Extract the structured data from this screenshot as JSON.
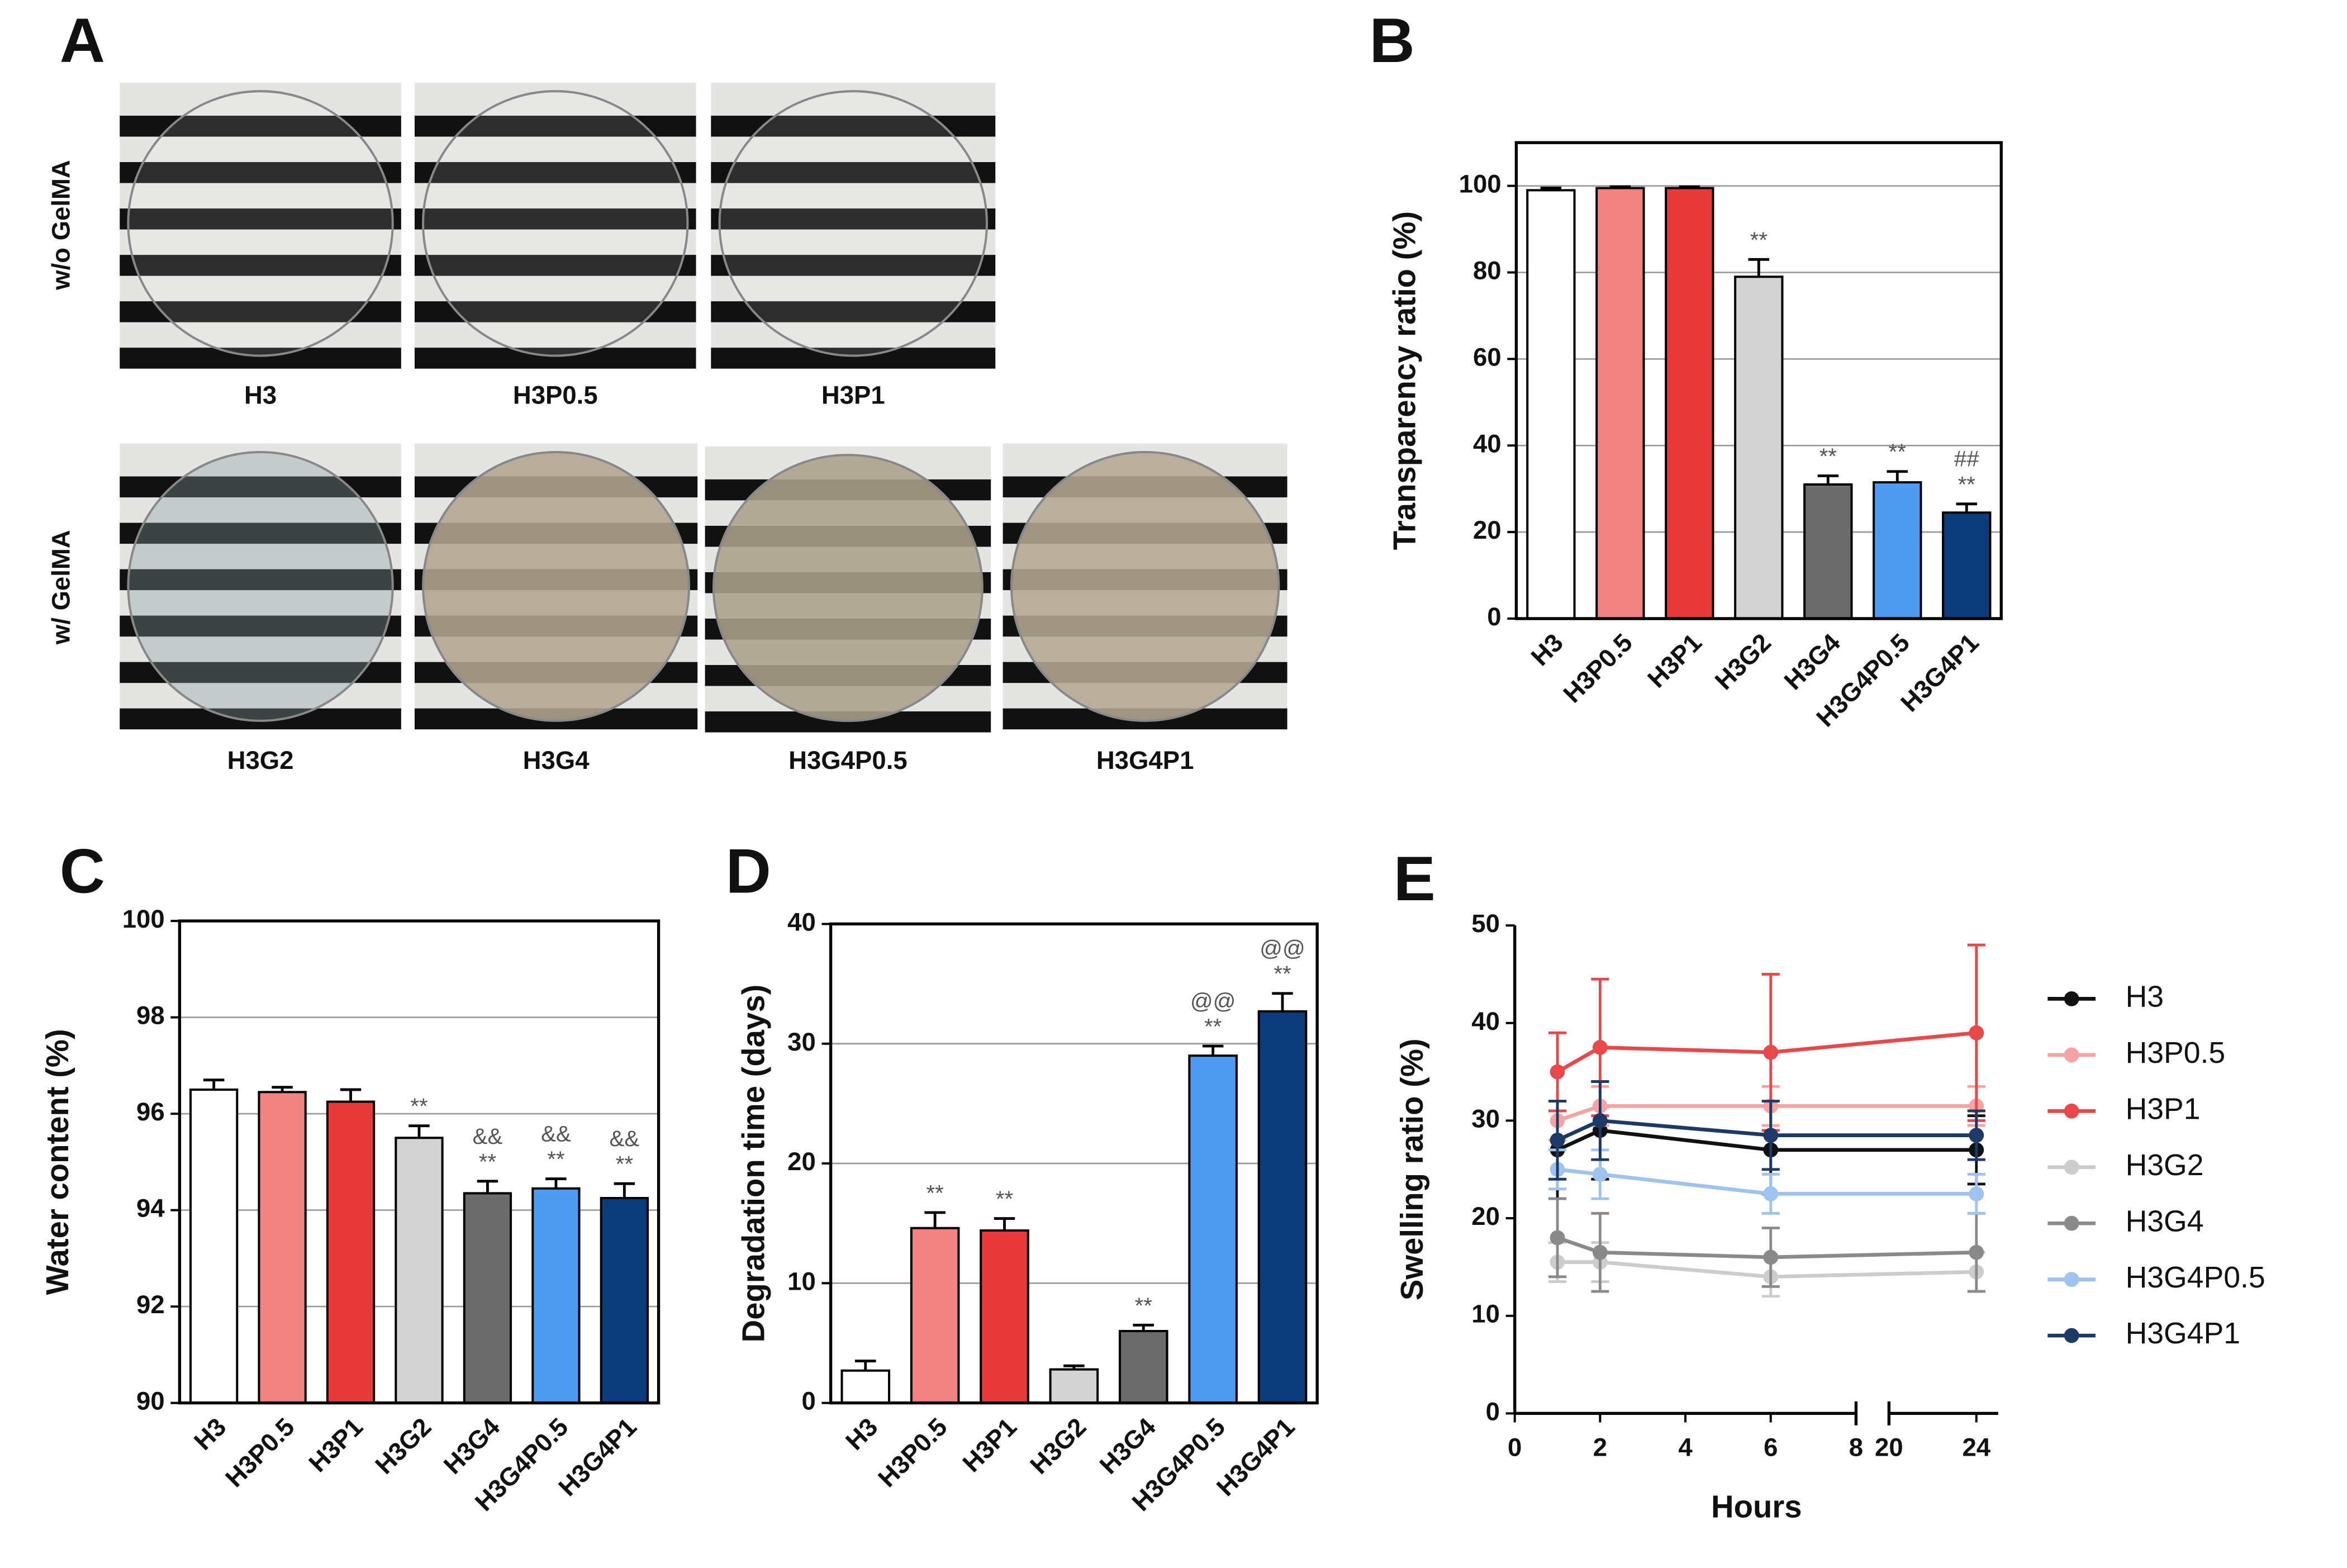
{
  "photo_panel": {
    "letter": "A",
    "row_labels": [
      "w/o GelMA",
      "w/ GelMA"
    ],
    "rows": [
      [
        "H3",
        "H3P0.5",
        "H3P1"
      ],
      [
        "H3G2",
        "H3G4",
        "H3G4P0.5",
        "H3G4P1"
      ]
    ]
  },
  "chart_data": [
    {
      "type": "bar",
      "letter": "B",
      "y_label": "Transparency ratio (%)",
      "categories": [
        "H3",
        "H3P0.5",
        "H3P1",
        "H3G2",
        "H3G4",
        "H3G4P0.5",
        "H3G4P1"
      ],
      "values": [
        99,
        99.5,
        99.5,
        79,
        31,
        31.5,
        24.5
      ],
      "errors": [
        0.5,
        0.3,
        0.3,
        4,
        2,
        2.5,
        2
      ],
      "colors": [
        "#ffffff",
        "#f28282",
        "#e8393b",
        "#d3d3d3",
        "#6b6b6b",
        "#4d9cf0",
        "#0d3c7a"
      ],
      "annotations": [
        [],
        [],
        [],
        [
          "**"
        ],
        [
          "**"
        ],
        [
          "**"
        ],
        [
          "**",
          "##"
        ]
      ],
      "ylim": [
        0,
        110
      ],
      "yticks": [
        0,
        20,
        40,
        60,
        80,
        100
      ],
      "grid": true
    },
    {
      "type": "bar",
      "letter": "C",
      "y_label": "Water content (%)",
      "categories": [
        "H3",
        "H3P0.5",
        "H3P1",
        "H3G2",
        "H3G4",
        "H3G4P0.5",
        "H3G4P1"
      ],
      "values": [
        96.5,
        96.45,
        96.25,
        95.5,
        94.35,
        94.45,
        94.25
      ],
      "errors": [
        0.2,
        0.1,
        0.25,
        0.25,
        0.25,
        0.2,
        0.3
      ],
      "colors": [
        "#ffffff",
        "#f28282",
        "#e8393b",
        "#d3d3d3",
        "#6b6b6b",
        "#4d9cf0",
        "#0d3c7a"
      ],
      "annotations": [
        [],
        [],
        [],
        [
          "**"
        ],
        [
          "**",
          "&&"
        ],
        [
          "**",
          "&&"
        ],
        [
          "**",
          "&&"
        ]
      ],
      "ylim": [
        90,
        100
      ],
      "yticks": [
        90,
        92,
        94,
        96,
        98,
        100
      ],
      "grid": true
    },
    {
      "type": "bar",
      "letter": "D",
      "y_label": "Degradation time (days)",
      "categories": [
        "H3",
        "H3P0.5",
        "H3P1",
        "H3G2",
        "H3G4",
        "H3G4P0.5",
        "H3G4P1"
      ],
      "values": [
        2.7,
        14.6,
        14.4,
        2.8,
        6,
        29,
        32.7
      ],
      "errors": [
        0.8,
        1.3,
        1,
        0.3,
        0.5,
        0.8,
        1.5
      ],
      "colors": [
        "#ffffff",
        "#f28282",
        "#e8393b",
        "#d3d3d3",
        "#6b6b6b",
        "#4d9cf0",
        "#0d3c7a"
      ],
      "annotations": [
        [],
        [
          "**"
        ],
        [
          "**"
        ],
        [],
        [
          "**"
        ],
        [
          "**",
          "@@"
        ],
        [
          "**",
          "@@"
        ]
      ],
      "ylim": [
        0,
        40
      ],
      "yticks": [
        0,
        10,
        20,
        30,
        40
      ],
      "grid": true
    },
    {
      "type": "line",
      "letter": "E",
      "y_label": "Swelling ratio (%)",
      "x_label": "Hours",
      "x": [
        1,
        2,
        6,
        24
      ],
      "xlim": [
        0,
        25
      ],
      "x_break": [
        8,
        20
      ],
      "xticks": [
        0,
        2,
        4,
        6,
        8,
        20,
        24
      ],
      "ylim": [
        0,
        50
      ],
      "yticks": [
        0,
        10,
        20,
        30,
        40,
        50
      ],
      "legend": "right",
      "series": [
        {
          "name": "H3",
          "color": "#111111",
          "values": [
            27,
            29,
            27,
            27
          ],
          "errors": [
            5,
            5,
            4.5,
            3.5
          ]
        },
        {
          "name": "H3P0.5",
          "color": "#f5a3a3",
          "values": [
            30,
            31.5,
            31.5,
            31.5
          ],
          "errors": [
            2,
            2,
            2,
            2
          ]
        },
        {
          "name": "H3P1",
          "color": "#e8484a",
          "values": [
            35,
            37.5,
            37,
            39
          ],
          "errors": [
            4,
            7,
            8,
            9
          ]
        },
        {
          "name": "H3G2",
          "color": "#cccccc",
          "values": [
            15.5,
            15.5,
            14,
            14.5
          ],
          "errors": [
            2,
            2,
            2,
            2
          ]
        },
        {
          "name": "H3G4",
          "color": "#8a8a8a",
          "values": [
            18,
            16.5,
            16,
            16.5
          ],
          "errors": [
            4,
            4,
            3,
            4
          ]
        },
        {
          "name": "H3G4P0.5",
          "color": "#9dc3ee",
          "values": [
            25,
            24.5,
            22.5,
            22.5
          ],
          "errors": [
            2,
            2.5,
            2,
            2
          ]
        },
        {
          "name": "H3G4P1",
          "color": "#1d3a66",
          "values": [
            28,
            30,
            28.5,
            28.5
          ],
          "errors": [
            4,
            4,
            3.5,
            2.5
          ]
        }
      ]
    }
  ]
}
